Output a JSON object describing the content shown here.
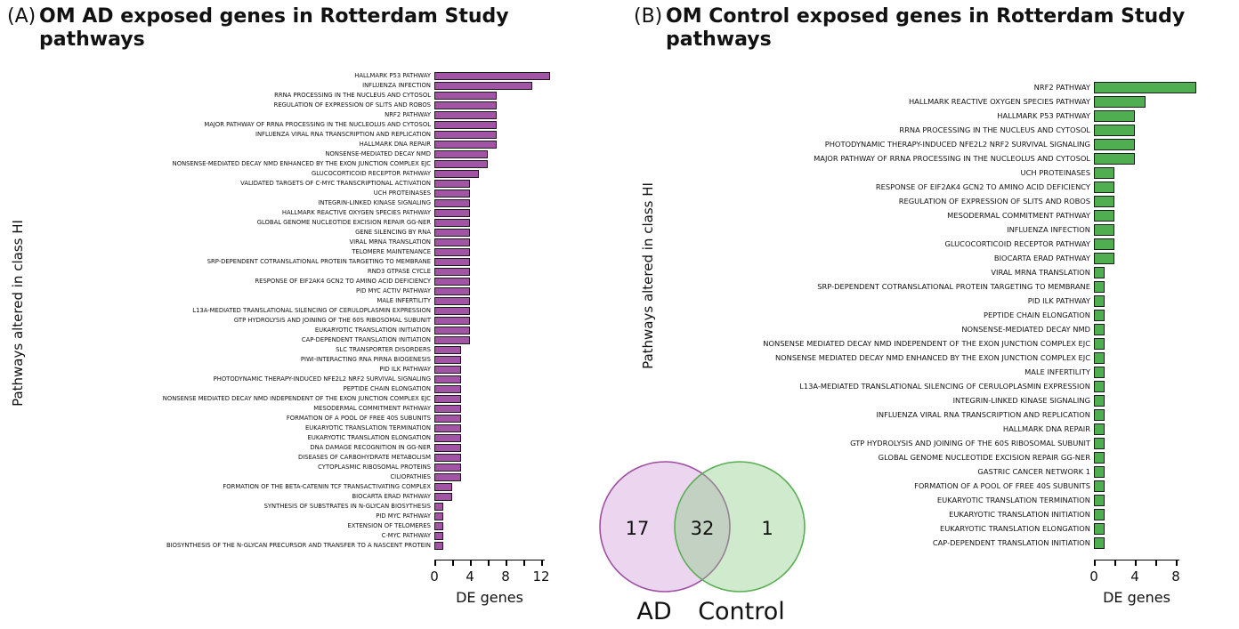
{
  "panel_a": {
    "tag": "(A)",
    "title": "OM AD exposed genes in Rotterdam Study pathways",
    "y_axis_label": "Pathways altered in class HI",
    "x_axis_label": "DE genes"
  },
  "panel_b": {
    "tag": "(B)",
    "title": "OM Control exposed genes in Rotterdam Study pathways",
    "y_axis_label": "Pathways altered in class HI",
    "x_axis_label": "DE genes"
  },
  "venn": {
    "left_label": "AD",
    "right_label": "Control",
    "left_count": "17",
    "overlap_count": "32",
    "right_count": "1",
    "left_fill": "#C887CE",
    "left_stroke": "#9E4FA4",
    "right_fill": "#86CB7F",
    "right_stroke": "#5AAE54"
  },
  "chart_data": [
    {
      "type": "bar",
      "orientation": "horizontal",
      "title": "OM AD exposed genes in Rotterdam Study pathways",
      "xlabel": "DE genes",
      "ylabel": "Pathways altered in class HI",
      "bar_color": "#A155A4",
      "xlim": [
        0,
        14
      ],
      "xticks": [
        0,
        2,
        4,
        6,
        8,
        10,
        12
      ],
      "xticks_labeled": [
        0,
        4,
        8,
        12
      ],
      "legend": "none",
      "grid": false,
      "categories": [
        "HALLMARK P53 PATHWAY",
        "INFLUENZA INFECTION",
        "RRNA PROCESSING IN THE NUCLEUS AND CYTOSOL",
        "REGULATION OF EXPRESSION OF SLITS AND ROBOS",
        "NRF2 PATHWAY",
        "MAJOR PATHWAY OF RRNA PROCESSING IN THE NUCLEOLUS AND CYTOSOL",
        "INFLUENZA VIRAL RNA TRANSCRIPTION AND REPLICATION",
        "HALLMARK DNA REPAIR",
        "NONSENSE-MEDIATED DECAY  NMD",
        "NONSENSE-MEDIATED DECAY  NMD  ENHANCED BY THE EXON JUNCTION COMPLEX  EJC",
        "GLUCOCORTICOID RECEPTOR PATHWAY",
        "VALIDATED TARGETS OF C-MYC TRANSCRIPTIONAL ACTIVATION",
        "UCH PROTEINASES",
        "INTEGRIN-LINKED KINASE SIGNALING",
        "HALLMARK REACTIVE OXYGEN SPECIES PATHWAY",
        "GLOBAL GENOME NUCLEOTIDE EXCISION REPAIR  GG-NER",
        "GENE SILENCING BY RNA",
        "VIRAL MRNA TRANSLATION",
        "TELOMERE MAINTENANCE",
        "SRP-DEPENDENT COTRANSLATIONAL PROTEIN TARGETING TO MEMBRANE",
        "RND3 GTPASE CYCLE",
        "RESPONSE OF EIF2AK4  GCN2  TO AMINO ACID DEFICIENCY",
        "PID MYC ACTIV PATHWAY",
        "MALE INFERTILITY",
        "L13A-MEDIATED TRANSLATIONAL SILENCING OF CERULOPLASMIN EXPRESSION",
        "GTP HYDROLYSIS AND JOINING OF THE 60S RIBOSOMAL SUBUNIT",
        "EUKARYOTIC TRANSLATION INITIATION",
        "CAP-DEPENDENT TRANSLATION INITIATION",
        "SLC TRANSPORTER DISORDERS",
        "PIWI-INTERACTING RNA  PIRNA  BIOGENESIS",
        "PID ILK PATHWAY",
        "PHOTODYNAMIC THERAPY-INDUCED NFE2L2  NRF2  SURVIVAL SIGNALING",
        "PEPTIDE CHAIN ELONGATION",
        "NONSENSE MEDIATED DECAY  NMD  INDEPENDENT OF THE EXON JUNCTION COMPLEX  EJC",
        "MESODERMAL COMMITMENT PATHWAY",
        "FORMATION OF A POOL OF FREE 40S SUBUNITS",
        "EUKARYOTIC TRANSLATION TERMINATION",
        "EUKARYOTIC TRANSLATION ELONGATION",
        "DNA DAMAGE RECOGNITION IN GG-NER",
        "DISEASES OF CARBOHYDRATE METABOLISM",
        "CYTOPLASMIC RIBOSOMAL PROTEINS",
        "CILIOPATHIES",
        "FORMATION OF THE BETA-CATENIN TCF TRANSACTIVATING COMPLEX",
        "BIOCARTA ERAD PATHWAY",
        "SYNTHESIS OF SUBSTRATES IN N-GLYCAN BIOSYTHESIS",
        "PID MYC PATHWAY",
        "EXTENSION OF TELOMERES",
        "C-MYC PATHWAY",
        "BIOSYNTHESIS OF THE N-GLYCAN PRECURSOR AND TRANSFER TO A NASCENT PROTEIN"
      ],
      "values": [
        13,
        11,
        7,
        7,
        7,
        7,
        7,
        7,
        6,
        6,
        5,
        4,
        4,
        4,
        4,
        4,
        4,
        4,
        4,
        4,
        4,
        4,
        4,
        4,
        4,
        4,
        4,
        4,
        3,
        3,
        3,
        3,
        3,
        3,
        3,
        3,
        3,
        3,
        3,
        3,
        3,
        3,
        2,
        2,
        1,
        1,
        1,
        1,
        1
      ]
    },
    {
      "type": "bar",
      "orientation": "horizontal",
      "title": "OM Control exposed genes in Rotterdam Study pathways",
      "xlabel": "DE genes",
      "ylabel": "Pathways altered in class HI",
      "bar_color": "#4FAE4F",
      "xlim": [
        0,
        10
      ],
      "xticks": [
        0,
        2,
        4,
        6,
        8
      ],
      "xticks_labeled": [
        0,
        4,
        8
      ],
      "legend": "none",
      "grid": false,
      "categories": [
        "NRF2 PATHWAY",
        "HALLMARK REACTIVE OXYGEN SPECIES PATHWAY",
        "HALLMARK P53 PATHWAY",
        "RRNA PROCESSING IN THE NUCLEUS AND CYTOSOL",
        "PHOTODYNAMIC THERAPY-INDUCED NFE2L2  NRF2  SURVIVAL SIGNALING",
        "MAJOR PATHWAY OF RRNA PROCESSING IN THE NUCLEOLUS AND CYTOSOL",
        "UCH PROTEINASES",
        "RESPONSE OF EIF2AK4  GCN2  TO AMINO ACID DEFICIENCY",
        "REGULATION OF EXPRESSION OF SLITS AND ROBOS",
        "MESODERMAL COMMITMENT PATHWAY",
        "INFLUENZA INFECTION",
        "GLUCOCORTICOID RECEPTOR PATHWAY",
        "BIOCARTA ERAD PATHWAY",
        "VIRAL MRNA TRANSLATION",
        "SRP-DEPENDENT COTRANSLATIONAL PROTEIN TARGETING TO MEMBRANE",
        "PID ILK PATHWAY",
        "PEPTIDE CHAIN ELONGATION",
        "NONSENSE-MEDIATED DECAY  NMD",
        "NONSENSE MEDIATED DECAY  NMD  INDEPENDENT OF THE EXON JUNCTION COMPLEX  EJC",
        "NONSENSE MEDIATED DECAY  NMD  ENHANCED BY THE EXON JUNCTION COMPLEX  EJC",
        "MALE INFERTILITY",
        "L13A-MEDIATED TRANSLATIONAL SILENCING OF CERULOPLASMIN EXPRESSION",
        "INTEGRIN-LINKED KINASE SIGNALING",
        "INFLUENZA VIRAL RNA TRANSCRIPTION AND REPLICATION",
        "HALLMARK DNA REPAIR",
        "GTP HYDROLYSIS AND JOINING OF THE 60S RIBOSOMAL SUBUNIT",
        "GLOBAL GENOME NUCLEOTIDE EXCISION REPAIR  GG-NER",
        "GASTRIC CANCER NETWORK 1",
        "FORMATION OF A POOL OF FREE 40S SUBUNITS",
        "EUKARYOTIC TRANSLATION TERMINATION",
        "EUKARYOTIC TRANSLATION INITIATION",
        "EUKARYOTIC TRANSLATION ELONGATION",
        "CAP-DEPENDENT TRANSLATION INITIATION"
      ],
      "values": [
        10,
        5,
        4,
        4,
        4,
        4,
        2,
        2,
        2,
        2,
        2,
        2,
        2,
        1,
        1,
        1,
        1,
        1,
        1,
        1,
        1,
        1,
        1,
        1,
        1,
        1,
        1,
        1,
        1,
        1,
        1,
        1,
        1
      ]
    }
  ]
}
